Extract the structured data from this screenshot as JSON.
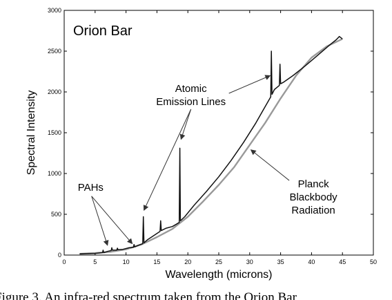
{
  "chart_data": {
    "type": "line",
    "title": "Orion Bar",
    "xlabel": "Wavelength (microns)",
    "ylabel": "Spectral Intensity",
    "xlim": [
      0,
      50
    ],
    "ylim": [
      0,
      3000
    ],
    "xticks": [
      0,
      5,
      10,
      15,
      20,
      25,
      30,
      35,
      40,
      45,
      50
    ],
    "yticks": [
      0,
      500,
      1000,
      1500,
      2000,
      2500,
      3000
    ],
    "grid": false,
    "series": [
      {
        "color": "#111111",
        "x": [
          2.5,
          5,
          6.2,
          6.3,
          6.4,
          7,
          7.6,
          7.7,
          7.8,
          8.5,
          8.6,
          8.7,
          9.5,
          10.5,
          11.2,
          11.3,
          11.4,
          12,
          12.7,
          12.8,
          12.9,
          13.5,
          14.5,
          15.5,
          15.6,
          15.7,
          16.5,
          17.5,
          18.6,
          18.7,
          18.8,
          19.5,
          21,
          23,
          25,
          27,
          29,
          31,
          32.5,
          33.4,
          33.5,
          33.6,
          34,
          34.8,
          34.9,
          35.0,
          35.5,
          37,
          39,
          41,
          43,
          44,
          44.5,
          45
        ],
        "y": [
          15,
          20,
          30,
          60,
          30,
          45,
          55,
          90,
          60,
          60,
          85,
          65,
          70,
          90,
          95,
          130,
          100,
          120,
          140,
          470,
          150,
          190,
          240,
          290,
          420,
          300,
          330,
          350,
          400,
          1310,
          420,
          470,
          610,
          780,
          960,
          1160,
          1380,
          1620,
          1820,
          1940,
          2500,
          1970,
          2030,
          2080,
          2340,
          2100,
          2120,
          2200,
          2320,
          2450,
          2580,
          2640,
          2680,
          2650
        ]
      },
      {
        "color": "#999999",
        "x": [
          2.5,
          5,
          7.5,
          10,
          12.5,
          15,
          17.5,
          20,
          22.5,
          25,
          27.5,
          30,
          32.5,
          35,
          37.5,
          40,
          42.5,
          45
        ],
        "y": [
          15,
          25,
          40,
          70,
          130,
          220,
          320,
          470,
          660,
          860,
          1080,
          1350,
          1620,
          1920,
          2200,
          2420,
          2560,
          2650
        ]
      }
    ],
    "annotations": [
      {
        "text_lines": [
          "PAHs"
        ],
        "text_x": 2.2,
        "text_y": 790,
        "arrow_to": [
          [
            7,
            120
          ],
          [
            11,
            140
          ]
        ]
      },
      {
        "text_lines": [
          "Atomic",
          "Emission Lines"
        ],
        "text_x": 20.5,
        "text_y": 2000,
        "arrow_to": [
          [
            12.9,
            550
          ],
          [
            18.9,
            1420
          ],
          [
            33.3,
            2200
          ]
        ]
      },
      {
        "text_lines": [
          "Planck",
          "Blackbody",
          "Radiation"
        ],
        "text_x": 40.3,
        "text_y": 830,
        "arrow_to": [
          [
            30.2,
            1290
          ]
        ]
      }
    ]
  },
  "caption": "Figure 3. An infra-red spectrum taken from the Orion Bar"
}
